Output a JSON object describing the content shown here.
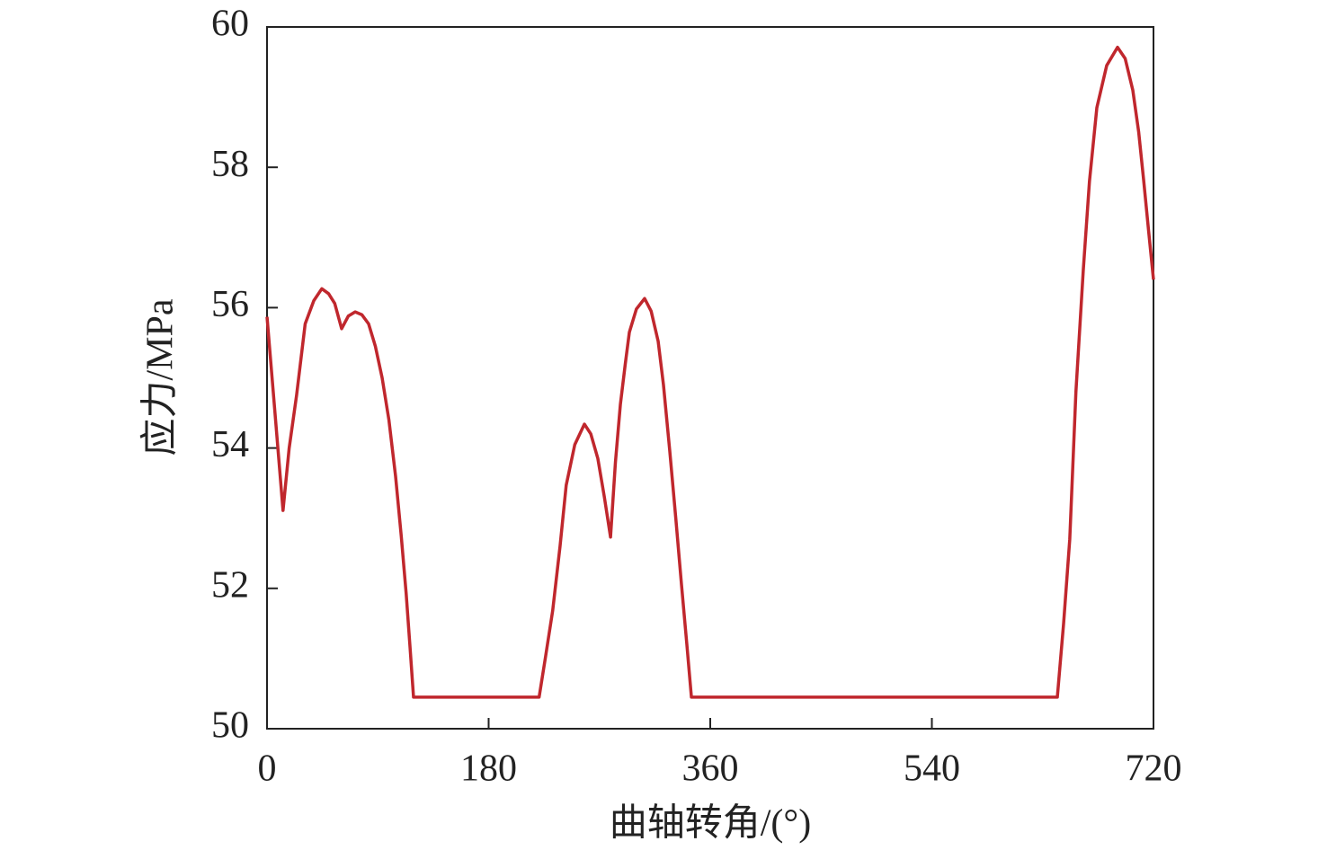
{
  "chart_data": {
    "type": "line",
    "x_label": "曲轴转角/(°)",
    "y_label": "应力/MPa",
    "series": [
      {
        "color": "#c0272d",
        "x": [
          0,
          6,
          13,
          18,
          24,
          31,
          38,
          44.5,
          50,
          55,
          60.6,
          66,
          71.6,
          77,
          82.5,
          88,
          93.5,
          99,
          104.4,
          109,
          113,
          116,
          119,
          221,
          226,
          232,
          238,
          243,
          250,
          257.8,
          263,
          268.7,
          274,
          279,
          283,
          287,
          291,
          294.3,
          300,
          306.7,
          312,
          317.7,
          322,
          327,
          332,
          336.6,
          341,
          344.7,
          641.9,
          647,
          652,
          657,
          663,
          668,
          674,
          682,
          690.8,
          697,
          703.2,
          708,
          712,
          716,
          720
        ],
        "values": [
          55.87,
          54.6,
          53.11,
          54.0,
          54.75,
          55.77,
          56.1,
          56.27,
          56.2,
          56.06,
          55.7,
          55.88,
          55.94,
          55.9,
          55.77,
          55.45,
          55.0,
          54.4,
          53.6,
          52.75,
          51.93,
          51.2,
          50.45,
          50.45,
          51.0,
          51.68,
          52.6,
          53.47,
          54.05,
          54.34,
          54.2,
          53.85,
          53.3,
          52.73,
          53.8,
          54.62,
          55.2,
          55.65,
          55.98,
          56.13,
          55.95,
          55.52,
          54.9,
          53.98,
          53.0,
          52.06,
          51.2,
          50.45,
          50.45,
          51.5,
          52.7,
          54.8,
          56.54,
          57.8,
          58.85,
          59.45,
          59.71,
          59.55,
          59.1,
          58.5,
          57.82,
          57.1,
          56.4
        ]
      }
    ],
    "xlim": [
      0,
      720
    ],
    "xticks": [
      0,
      180,
      360,
      540,
      720
    ],
    "ylim": [
      50,
      60
    ],
    "yticks": [
      50,
      52,
      54,
      56,
      58,
      60
    ]
  }
}
